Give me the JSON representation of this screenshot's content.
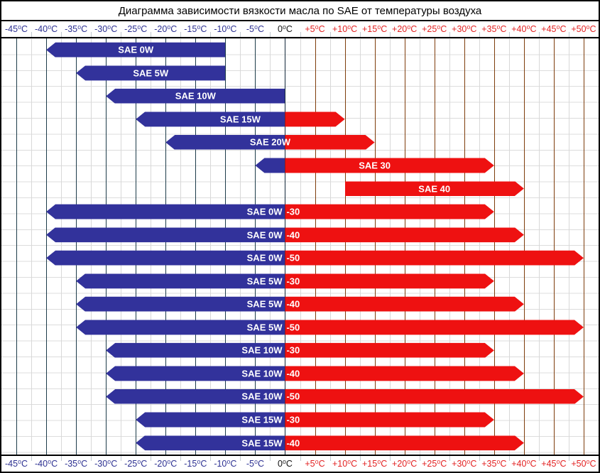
{
  "title": "Диаграмма зависимости вязкости масла по SAE от температуры воздуха",
  "axis": {
    "ticks": [
      {
        "t": -45,
        "label": "-45⁰C"
      },
      {
        "t": -40,
        "label": "-40⁰C"
      },
      {
        "t": -35,
        "label": "-35⁰C"
      },
      {
        "t": -30,
        "label": "-30⁰C"
      },
      {
        "t": -25,
        "label": "-25⁰C"
      },
      {
        "t": -20,
        "label": "-20⁰C"
      },
      {
        "t": -15,
        "label": "-15⁰C"
      },
      {
        "t": -10,
        "label": "-10⁰C"
      },
      {
        "t": -5,
        "label": "-5⁰C"
      },
      {
        "t": 0,
        "label": "0⁰C"
      },
      {
        "t": 5,
        "label": "+5⁰C"
      },
      {
        "t": 10,
        "label": "+10⁰C"
      },
      {
        "t": 15,
        "label": "+15⁰C"
      },
      {
        "t": 20,
        "label": "+20⁰C"
      },
      {
        "t": 25,
        "label": "+25⁰C"
      },
      {
        "t": 30,
        "label": "+30⁰C"
      },
      {
        "t": 35,
        "label": "+35⁰C"
      },
      {
        "t": 40,
        "label": "+40⁰C"
      },
      {
        "t": 45,
        "label": "+45⁰C"
      },
      {
        "t": 50,
        "label": "+50⁰C"
      }
    ]
  },
  "chart_data": {
    "type": "bar",
    "orientation": "horizontal-range",
    "title": "Диаграмма зависимости вязкости масла по SAE от температуры воздуха",
    "x_unit": "°C",
    "xlim": [
      -47.5,
      52.5
    ],
    "x_tick_step": 5,
    "grid": true,
    "rows": [
      {
        "label": "SAE 0W",
        "suffix": "",
        "cold_range": [
          -40,
          -10
        ],
        "hot_range": null,
        "arrow_left": true,
        "arrow_right": false,
        "label_mode": "center"
      },
      {
        "label": "SAE 5W",
        "suffix": "",
        "cold_range": [
          -35,
          -10
        ],
        "hot_range": null,
        "arrow_left": true,
        "arrow_right": false,
        "label_mode": "center"
      },
      {
        "label": "SAE 10W",
        "suffix": "",
        "cold_range": [
          -30,
          0
        ],
        "hot_range": null,
        "arrow_left": true,
        "arrow_right": false,
        "label_mode": "center"
      },
      {
        "label": "SAE 15W",
        "suffix": "",
        "cold_range": [
          -25,
          0
        ],
        "hot_range": [
          0,
          10
        ],
        "arrow_left": true,
        "arrow_right": true,
        "label_mode": "center"
      },
      {
        "label": "SAE 20W",
        "suffix": "",
        "cold_range": [
          -20,
          0
        ],
        "hot_range": [
          0,
          15
        ],
        "arrow_left": true,
        "arrow_right": true,
        "label_mode": "center"
      },
      {
        "label": "SAE 30",
        "suffix": "",
        "cold_range": [
          -5,
          0
        ],
        "hot_range": [
          0,
          35
        ],
        "arrow_left": true,
        "arrow_right": true,
        "label_mode": "center"
      },
      {
        "label": "SAE 40",
        "suffix": "",
        "cold_range": null,
        "hot_range": [
          10,
          40
        ],
        "arrow_left": false,
        "arrow_right": true,
        "label_mode": "center"
      },
      {
        "label": "SAE 0W",
        "suffix": "-30",
        "cold_range": [
          -40,
          0
        ],
        "hot_range": [
          0,
          35
        ],
        "arrow_left": true,
        "arrow_right": true,
        "label_mode": "split"
      },
      {
        "label": "SAE 0W",
        "suffix": "-40",
        "cold_range": [
          -40,
          0
        ],
        "hot_range": [
          0,
          40
        ],
        "arrow_left": true,
        "arrow_right": true,
        "label_mode": "split"
      },
      {
        "label": "SAE 0W",
        "suffix": "-50",
        "cold_range": [
          -40,
          0
        ],
        "hot_range": [
          0,
          50
        ],
        "arrow_left": true,
        "arrow_right": true,
        "label_mode": "split"
      },
      {
        "label": "SAE 5W",
        "suffix": "-30",
        "cold_range": [
          -35,
          0
        ],
        "hot_range": [
          0,
          35
        ],
        "arrow_left": true,
        "arrow_right": true,
        "label_mode": "split"
      },
      {
        "label": "SAE 5W",
        "suffix": "-40",
        "cold_range": [
          -35,
          0
        ],
        "hot_range": [
          0,
          40
        ],
        "arrow_left": true,
        "arrow_right": true,
        "label_mode": "split"
      },
      {
        "label": "SAE 5W",
        "suffix": "-50",
        "cold_range": [
          -35,
          0
        ],
        "hot_range": [
          0,
          50
        ],
        "arrow_left": true,
        "arrow_right": true,
        "label_mode": "split"
      },
      {
        "label": "SAE 10W",
        "suffix": "-30",
        "cold_range": [
          -30,
          0
        ],
        "hot_range": [
          0,
          35
        ],
        "arrow_left": true,
        "arrow_right": true,
        "label_mode": "split"
      },
      {
        "label": "SAE 10W",
        "suffix": "-40",
        "cold_range": [
          -30,
          0
        ],
        "hot_range": [
          0,
          40
        ],
        "arrow_left": true,
        "arrow_right": true,
        "label_mode": "split"
      },
      {
        "label": "SAE 10W",
        "suffix": "-50",
        "cold_range": [
          -30,
          0
        ],
        "hot_range": [
          0,
          50
        ],
        "arrow_left": true,
        "arrow_right": true,
        "label_mode": "split"
      },
      {
        "label": "SAE 15W",
        "suffix": "-30",
        "cold_range": [
          -25,
          0
        ],
        "hot_range": [
          0,
          35
        ],
        "arrow_left": true,
        "arrow_right": true,
        "label_mode": "split"
      },
      {
        "label": "SAE 15W",
        "suffix": "-40",
        "cold_range": [
          -25,
          0
        ],
        "hot_range": [
          0,
          40
        ],
        "arrow_left": true,
        "arrow_right": true,
        "label_mode": "split"
      }
    ]
  },
  "colors": {
    "bar_cold": "#32329b",
    "bar_hot": "#ee1111",
    "bar_label": "#ffffff",
    "axis_negative": "#2d3192",
    "axis_zero": "#111111",
    "axis_positive": "#e32222",
    "grid_major_negative": "#1d3c4a",
    "grid_major_zero": "#13293a",
    "grid_major_positive": "#7e3d0c",
    "grid_minor": "#d8d8d8",
    "border": "#000000"
  }
}
